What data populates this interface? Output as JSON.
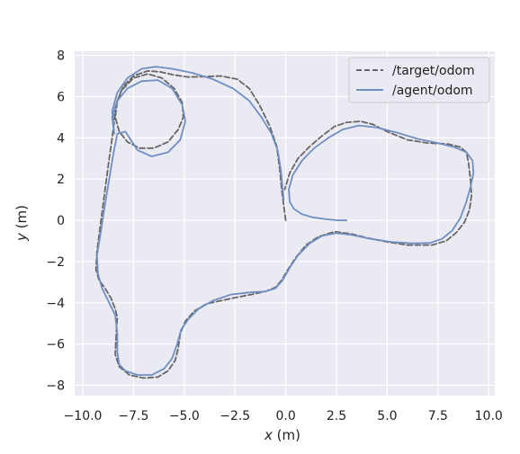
{
  "chart_data": {
    "type": "line",
    "xlabel": {
      "var": "x",
      "unit": " (m)"
    },
    "ylabel": {
      "var": "y",
      "unit": " (m)"
    },
    "xlim": [
      -10.4,
      10.3
    ],
    "ylim": [
      -8.5,
      8.2
    ],
    "xticks": [
      -10.0,
      -7.5,
      -5.0,
      -2.5,
      0.0,
      2.5,
      5.0,
      7.5,
      10.0
    ],
    "xtick_labels": [
      "−10.0",
      "−7.5",
      "−5.0",
      "−2.5",
      "0.0",
      "2.5",
      "5.0",
      "7.5",
      "10.0"
    ],
    "yticks": [
      -8,
      -6,
      -4,
      -2,
      0,
      2,
      4,
      6,
      8
    ],
    "ytick_labels": [
      "−8",
      "−6",
      "−4",
      "−2",
      "0",
      "2",
      "4",
      "6",
      "8"
    ],
    "grid": true,
    "background": "#eaeaf2",
    "legend_position": "top-right",
    "series": [
      {
        "name": "/target/odom",
        "color": "#666666",
        "dash": "dashed",
        "points": [
          [
            0.0,
            0.0
          ],
          [
            -0.1,
            0.7
          ],
          [
            -0.2,
            1.5
          ],
          [
            -0.3,
            2.5
          ],
          [
            -0.45,
            3.6
          ],
          [
            -0.8,
            4.6
          ],
          [
            -1.3,
            5.6
          ],
          [
            -1.8,
            6.4
          ],
          [
            -2.4,
            6.85
          ],
          [
            -3.2,
            7.0
          ],
          [
            -4.0,
            6.97
          ],
          [
            -4.8,
            6.95
          ],
          [
            -5.5,
            7.05
          ],
          [
            -6.2,
            7.2
          ],
          [
            -6.8,
            7.25
          ],
          [
            -7.5,
            7.0
          ],
          [
            -8.0,
            6.5
          ],
          [
            -8.3,
            5.8
          ],
          [
            -8.4,
            5.0
          ],
          [
            -8.2,
            4.3
          ],
          [
            -7.8,
            3.8
          ],
          [
            -7.2,
            3.5
          ],
          [
            -6.5,
            3.5
          ],
          [
            -5.8,
            3.8
          ],
          [
            -5.3,
            4.4
          ],
          [
            -5.05,
            5.0
          ],
          [
            -5.1,
            5.7
          ],
          [
            -5.5,
            6.4
          ],
          [
            -6.1,
            6.9
          ],
          [
            -6.8,
            7.1
          ],
          [
            -7.5,
            6.9
          ],
          [
            -8.1,
            6.3
          ],
          [
            -8.4,
            5.5
          ],
          [
            -8.45,
            4.8
          ],
          [
            -8.55,
            4.0
          ],
          [
            -8.7,
            3.0
          ],
          [
            -8.9,
            1.5
          ],
          [
            -9.1,
            0.0
          ],
          [
            -9.3,
            -1.5
          ],
          [
            -9.35,
            -2.4
          ],
          [
            -9.2,
            -2.9
          ],
          [
            -8.9,
            -3.3
          ],
          [
            -8.6,
            -3.8
          ],
          [
            -8.4,
            -4.3
          ],
          [
            -8.3,
            -4.7
          ],
          [
            -8.35,
            -5.5
          ],
          [
            -8.4,
            -6.5
          ],
          [
            -8.2,
            -7.1
          ],
          [
            -7.7,
            -7.5
          ],
          [
            -7.0,
            -7.65
          ],
          [
            -6.3,
            -7.6
          ],
          [
            -5.8,
            -7.3
          ],
          [
            -5.45,
            -6.8
          ],
          [
            -5.3,
            -6.2
          ],
          [
            -5.2,
            -5.5
          ],
          [
            -4.95,
            -4.9
          ],
          [
            -4.5,
            -4.4
          ],
          [
            -3.9,
            -4.05
          ],
          [
            -3.2,
            -3.9
          ],
          [
            -2.5,
            -3.75
          ],
          [
            -1.7,
            -3.6
          ],
          [
            -1.0,
            -3.45
          ],
          [
            -0.5,
            -3.25
          ],
          [
            -0.2,
            -2.9
          ],
          [
            0.1,
            -2.4
          ],
          [
            0.5,
            -1.8
          ],
          [
            1.0,
            -1.2
          ],
          [
            1.6,
            -0.8
          ],
          [
            2.4,
            -0.55
          ],
          [
            3.2,
            -0.65
          ],
          [
            4.0,
            -0.85
          ],
          [
            5.0,
            -1.05
          ],
          [
            6.0,
            -1.2
          ],
          [
            7.2,
            -1.2
          ],
          [
            7.9,
            -1.0
          ],
          [
            8.4,
            -0.6
          ],
          [
            8.8,
            -0.1
          ],
          [
            9.05,
            0.5
          ],
          [
            9.15,
            1.2
          ],
          [
            9.1,
            2.0
          ],
          [
            9.0,
            2.8
          ],
          [
            8.9,
            3.3
          ],
          [
            8.6,
            3.55
          ],
          [
            8.0,
            3.7
          ],
          [
            7.0,
            3.75
          ],
          [
            6.0,
            3.9
          ],
          [
            5.0,
            4.3
          ],
          [
            4.3,
            4.65
          ],
          [
            3.7,
            4.8
          ],
          [
            3.0,
            4.75
          ],
          [
            2.4,
            4.55
          ],
          [
            1.8,
            4.1
          ],
          [
            1.2,
            3.6
          ],
          [
            0.6,
            3.0
          ],
          [
            0.2,
            2.3
          ],
          [
            -0.05,
            1.5
          ]
        ]
      },
      {
        "name": "/agent/odom",
        "color": "#6f8ec2",
        "dash": "solid",
        "points": [
          [
            3.0,
            0.0
          ],
          [
            2.6,
            0.0
          ],
          [
            2.0,
            0.05
          ],
          [
            1.3,
            0.15
          ],
          [
            0.8,
            0.3
          ],
          [
            0.4,
            0.55
          ],
          [
            0.2,
            0.9
          ],
          [
            0.15,
            1.5
          ],
          [
            0.35,
            2.2
          ],
          [
            0.8,
            2.9
          ],
          [
            1.4,
            3.5
          ],
          [
            2.1,
            4.0
          ],
          [
            2.8,
            4.4
          ],
          [
            3.6,
            4.6
          ],
          [
            4.5,
            4.5
          ],
          [
            5.5,
            4.25
          ],
          [
            6.5,
            3.95
          ],
          [
            7.5,
            3.75
          ],
          [
            8.3,
            3.55
          ],
          [
            8.9,
            3.3
          ],
          [
            9.2,
            2.9
          ],
          [
            9.25,
            2.3
          ],
          [
            9.1,
            1.6
          ],
          [
            8.9,
            0.9
          ],
          [
            8.6,
            0.1
          ],
          [
            8.2,
            -0.5
          ],
          [
            7.7,
            -0.9
          ],
          [
            7.1,
            -1.1
          ],
          [
            6.2,
            -1.12
          ],
          [
            5.2,
            -1.05
          ],
          [
            4.2,
            -0.9
          ],
          [
            3.2,
            -0.7
          ],
          [
            2.5,
            -0.62
          ],
          [
            1.8,
            -0.75
          ],
          [
            1.2,
            -1.1
          ],
          [
            0.6,
            -1.7
          ],
          [
            0.2,
            -2.3
          ],
          [
            -0.15,
            -2.9
          ],
          [
            -0.5,
            -3.3
          ],
          [
            -1.0,
            -3.45
          ],
          [
            -1.8,
            -3.5
          ],
          [
            -2.7,
            -3.6
          ],
          [
            -3.6,
            -3.9
          ],
          [
            -4.3,
            -4.3
          ],
          [
            -4.8,
            -4.8
          ],
          [
            -5.15,
            -5.3
          ],
          [
            -5.35,
            -6.0
          ],
          [
            -5.6,
            -6.7
          ],
          [
            -6.0,
            -7.2
          ],
          [
            -6.6,
            -7.5
          ],
          [
            -7.3,
            -7.5
          ],
          [
            -7.9,
            -7.3
          ],
          [
            -8.2,
            -7.0
          ],
          [
            -8.3,
            -6.4
          ],
          [
            -8.3,
            -5.5
          ],
          [
            -8.4,
            -4.6
          ],
          [
            -8.7,
            -4.0
          ],
          [
            -9.05,
            -3.3
          ],
          [
            -9.25,
            -2.6
          ],
          [
            -9.3,
            -1.7
          ],
          [
            -9.1,
            -0.5
          ],
          [
            -8.9,
            0.8
          ],
          [
            -8.7,
            2.0
          ],
          [
            -8.5,
            3.2
          ],
          [
            -8.3,
            4.2
          ],
          [
            -7.9,
            4.3
          ],
          [
            -7.3,
            3.4
          ],
          [
            -6.6,
            3.1
          ],
          [
            -5.8,
            3.3
          ],
          [
            -5.2,
            3.9
          ],
          [
            -4.95,
            4.8
          ],
          [
            -5.1,
            5.6
          ],
          [
            -5.6,
            6.4
          ],
          [
            -6.3,
            6.8
          ],
          [
            -7.1,
            6.75
          ],
          [
            -7.8,
            6.4
          ],
          [
            -8.3,
            5.8
          ],
          [
            -8.55,
            5.0
          ],
          [
            -8.45,
            4.2
          ],
          [
            -8.55,
            5.3
          ],
          [
            -8.3,
            6.2
          ],
          [
            -7.8,
            6.9
          ],
          [
            -7.1,
            7.35
          ],
          [
            -6.4,
            7.45
          ],
          [
            -5.6,
            7.35
          ],
          [
            -4.6,
            7.15
          ],
          [
            -3.6,
            6.85
          ],
          [
            -2.6,
            6.4
          ],
          [
            -1.8,
            5.8
          ],
          [
            -1.2,
            5.0
          ],
          [
            -0.7,
            4.2
          ],
          [
            -0.4,
            3.4
          ],
          [
            -0.25,
            2.5
          ],
          [
            -0.15,
            1.5
          ],
          [
            -0.1,
            1.0
          ]
        ]
      }
    ]
  }
}
